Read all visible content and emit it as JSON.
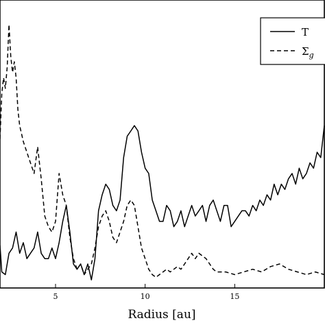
{
  "chart_data": {
    "type": "line",
    "xlabel": "Radius [au]",
    "ylabel": "",
    "title": "",
    "xlim": [
      1.9,
      20.0
    ],
    "ylim": [
      0,
      1
    ],
    "grid": false,
    "legend": {
      "placement": "top-right",
      "entries": [
        {
          "label": "T",
          "style": "solid"
        },
        {
          "label_base": "Σ",
          "label_sub": "g",
          "style": "dashed"
        }
      ]
    },
    "xticks": [
      5,
      10,
      15
    ],
    "series": [
      {
        "style": "solid",
        "color": "#000000",
        "x": [
          1.9,
          2.0,
          2.2,
          2.4,
          2.6,
          2.8,
          3.0,
          3.2,
          3.4,
          3.6,
          3.8,
          4.0,
          4.2,
          4.4,
          4.6,
          4.8,
          5.0,
          5.2,
          5.4,
          5.6,
          5.8,
          6.0,
          6.2,
          6.4,
          6.6,
          6.8,
          7.0,
          7.2,
          7.4,
          7.6,
          7.8,
          8.0,
          8.2,
          8.4,
          8.6,
          8.8,
          9.0,
          9.2,
          9.4,
          9.6,
          9.8,
          10.0,
          10.2,
          10.4,
          10.6,
          10.8,
          11.0,
          11.2,
          11.4,
          11.6,
          11.8,
          12.0,
          12.2,
          12.4,
          12.6,
          12.8,
          13.0,
          13.2,
          13.4,
          13.6,
          13.8,
          14.0,
          14.2,
          14.4,
          14.6,
          14.8,
          15.0,
          15.2,
          15.4,
          15.6,
          15.8,
          16.0,
          16.2,
          16.4,
          16.6,
          16.8,
          17.0,
          17.2,
          17.4,
          17.6,
          17.8,
          18.0,
          18.2,
          18.4,
          18.6,
          18.8,
          19.0,
          19.2,
          19.4,
          19.6,
          19.8,
          20.0
        ],
        "values": [
          0.15,
          0.05,
          0.04,
          0.12,
          0.14,
          0.2,
          0.12,
          0.16,
          0.1,
          0.12,
          0.14,
          0.2,
          0.12,
          0.1,
          0.1,
          0.14,
          0.1,
          0.16,
          0.24,
          0.3,
          0.2,
          0.08,
          0.06,
          0.08,
          0.04,
          0.08,
          0.02,
          0.1,
          0.28,
          0.34,
          0.38,
          0.36,
          0.3,
          0.28,
          0.32,
          0.48,
          0.56,
          0.58,
          0.6,
          0.58,
          0.5,
          0.44,
          0.42,
          0.32,
          0.28,
          0.24,
          0.24,
          0.3,
          0.28,
          0.22,
          0.24,
          0.28,
          0.22,
          0.26,
          0.3,
          0.26,
          0.28,
          0.3,
          0.24,
          0.3,
          0.32,
          0.28,
          0.24,
          0.3,
          0.3,
          0.22,
          0.24,
          0.26,
          0.28,
          0.28,
          0.26,
          0.3,
          0.28,
          0.32,
          0.3,
          0.34,
          0.32,
          0.38,
          0.34,
          0.38,
          0.36,
          0.4,
          0.42,
          0.38,
          0.44,
          0.4,
          0.42,
          0.46,
          0.44,
          0.5,
          0.48,
          0.6
        ]
      },
      {
        "style": "dashed",
        "color": "#000000",
        "x": [
          1.9,
          2.0,
          2.1,
          2.2,
          2.3,
          2.4,
          2.5,
          2.6,
          2.7,
          2.8,
          2.9,
          3.0,
          3.2,
          3.4,
          3.6,
          3.8,
          4.0,
          4.2,
          4.4,
          4.6,
          4.8,
          5.0,
          5.2,
          5.4,
          5.6,
          5.8,
          6.0,
          6.2,
          6.4,
          6.6,
          6.8,
          7.0,
          7.2,
          7.4,
          7.6,
          7.8,
          8.0,
          8.2,
          8.4,
          8.6,
          8.8,
          9.0,
          9.2,
          9.4,
          9.6,
          9.8,
          10.0,
          10.2,
          10.4,
          10.6,
          10.8,
          11.0,
          11.2,
          11.4,
          11.6,
          11.8,
          12.0,
          12.2,
          12.4,
          12.6,
          12.8,
          13.0,
          13.2,
          13.4,
          13.6,
          13.8,
          14.0,
          14.5,
          15.0,
          15.5,
          16.0,
          16.5,
          17.0,
          17.5,
          18.0,
          18.5,
          19.0,
          19.5,
          20.0
        ],
        "values": [
          0.55,
          0.72,
          0.78,
          0.74,
          0.82,
          0.98,
          0.86,
          0.8,
          0.84,
          0.78,
          0.66,
          0.6,
          0.54,
          0.5,
          0.46,
          0.42,
          0.52,
          0.4,
          0.26,
          0.22,
          0.2,
          0.24,
          0.42,
          0.34,
          0.3,
          0.18,
          0.1,
          0.06,
          0.08,
          0.04,
          0.06,
          0.08,
          0.14,
          0.22,
          0.26,
          0.28,
          0.24,
          0.18,
          0.16,
          0.2,
          0.24,
          0.3,
          0.32,
          0.3,
          0.22,
          0.14,
          0.1,
          0.06,
          0.04,
          0.03,
          0.04,
          0.05,
          0.06,
          0.05,
          0.06,
          0.07,
          0.06,
          0.08,
          0.1,
          0.12,
          0.1,
          0.12,
          0.11,
          0.1,
          0.08,
          0.06,
          0.05,
          0.05,
          0.04,
          0.05,
          0.06,
          0.05,
          0.07,
          0.08,
          0.06,
          0.05,
          0.04,
          0.05,
          0.04
        ]
      }
    ]
  }
}
